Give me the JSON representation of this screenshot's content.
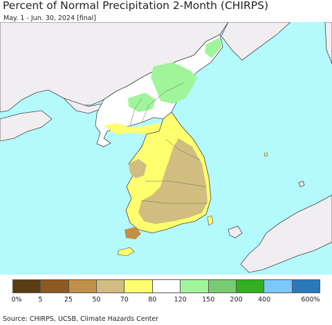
{
  "title": "Percent of Normal Precipitation 2-Month (CHIRPS)",
  "subtitle": "May. 1 - Jun. 30, 2024 [final]",
  "source": "Source: CHIRPS, UCSB, Climate Hazards Center",
  "colors": {
    "ocean": "#b4f9fb",
    "land_outside": "#f1eef1",
    "border": "#444444"
  },
  "legend": {
    "colors": [
      "#5a3e12",
      "#8c5a20",
      "#c0904a",
      "#d2bd80",
      "#fefe6e",
      "#ffffff",
      "#a0f59a",
      "#78cc70",
      "#32b01e",
      "#7cc7fb",
      "#2a79b8"
    ],
    "labels": [
      "0%",
      "5",
      "25",
      "50",
      "70",
      "80",
      "120",
      "150",
      "200",
      "400",
      "600%"
    ]
  }
}
